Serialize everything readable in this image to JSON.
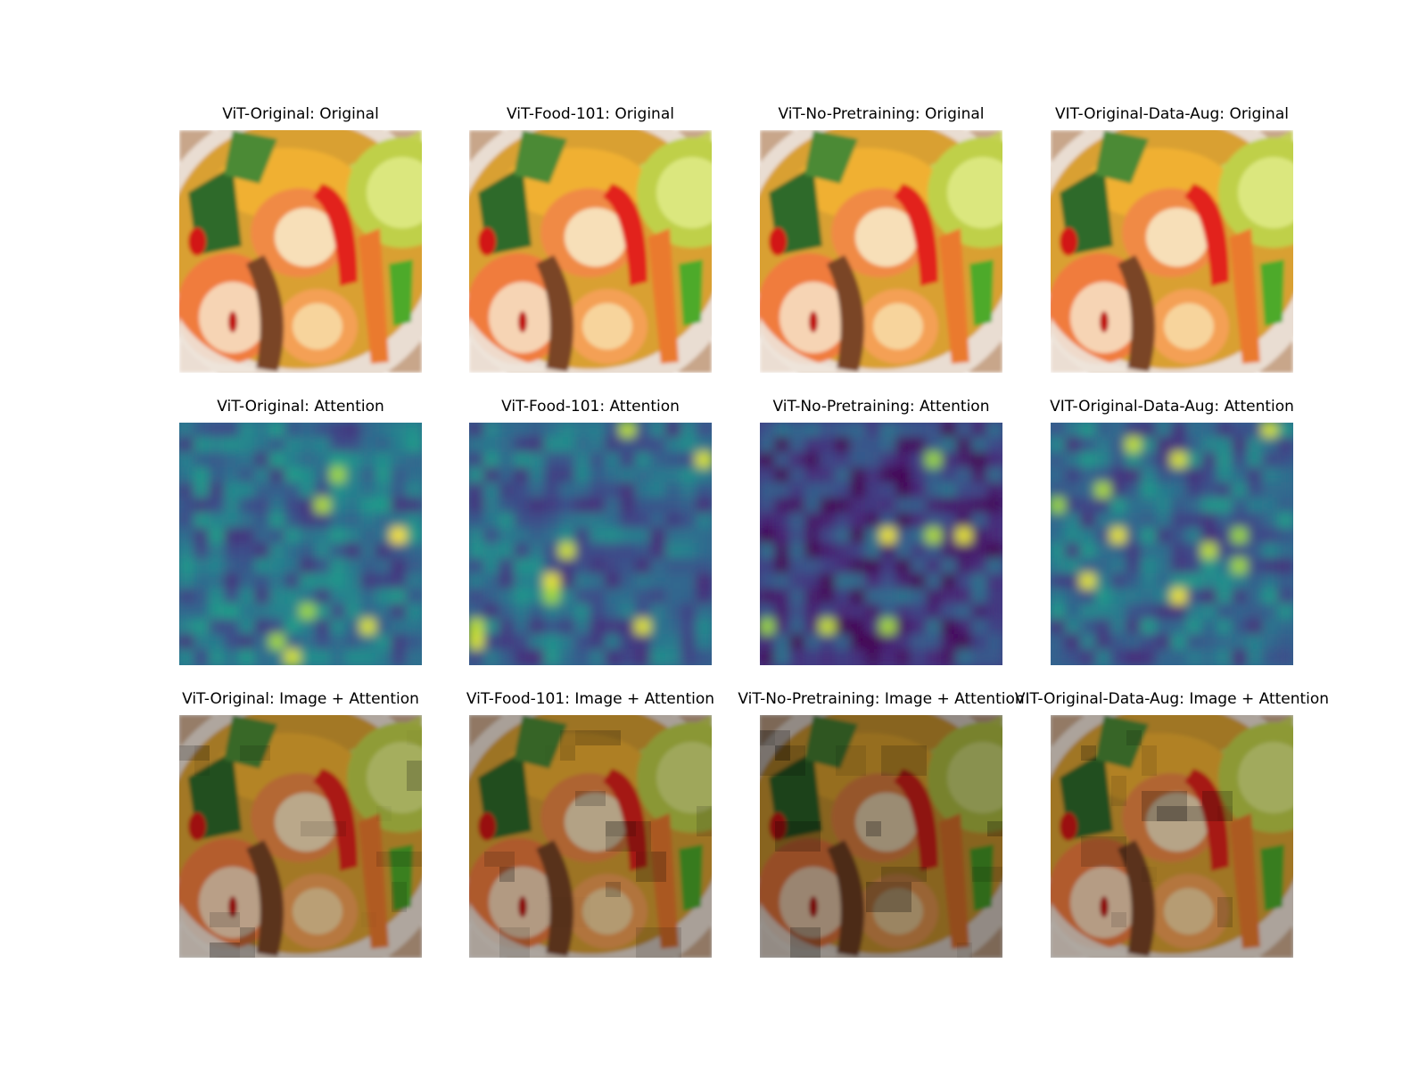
{
  "figure": {
    "rows": [
      {
        "kind": "original",
        "titles": [
          "ViT-Original: Original",
          "ViT-Food-101: Original",
          "ViT-No-Pretraining: Original",
          "VIT-Original-Data-Aug: Original"
        ]
      },
      {
        "kind": "attention",
        "titles": [
          "ViT-Original: Attention",
          "ViT-Food-101: Attention",
          "ViT-No-Pretraining: Attention",
          "VIT-Original-Data-Aug: Attention"
        ]
      },
      {
        "kind": "overlay",
        "titles": [
          "ViT-Original: Image + Attention",
          "ViT-Food-101: Image + Attention",
          "ViT-No-Pretraining: Image + Attention",
          "VIT-Original-Data-Aug: Image + Attention"
        ]
      }
    ],
    "colormap": "viridis",
    "colors": {
      "background": "#ffffff",
      "viridis_low": "#440154",
      "viridis_mid": "#21918c",
      "viridis_high": "#fde725"
    }
  }
}
